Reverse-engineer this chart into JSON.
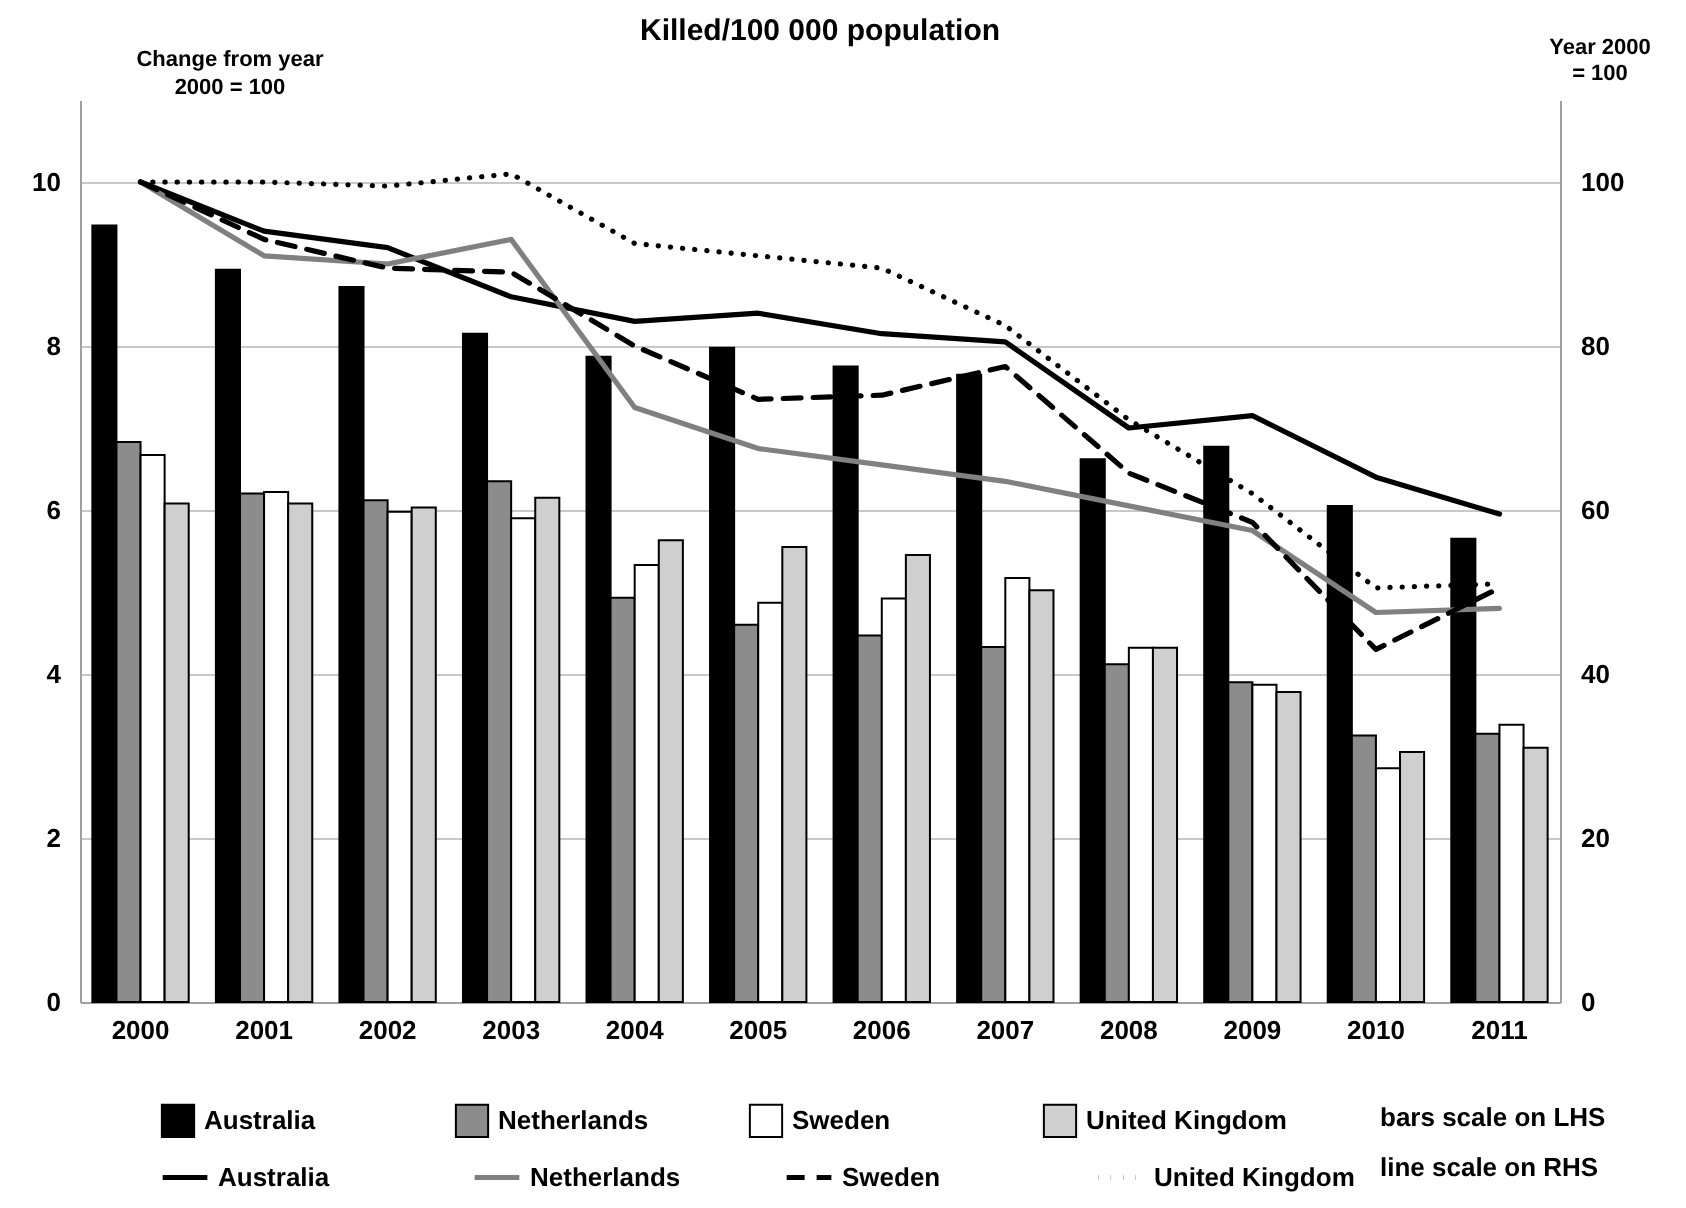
{
  "chart_data": {
    "type": "bar",
    "title": "Killed/100 000 population",
    "y2label": "Year 2000 = 100",
    "categories": [
      "2000",
      "2001",
      "2002",
      "2003",
      "2004",
      "2005",
      "2006",
      "2007",
      "2008",
      "2009",
      "2010",
      "2011"
    ],
    "series": [
      {
        "name": "Australia",
        "color": "#000000",
        "values": [
          9.47,
          8.93,
          8.72,
          8.15,
          7.87,
          7.98,
          7.75,
          7.65,
          6.62,
          6.77,
          6.05,
          5.65
        ]
      },
      {
        "name": "Netherlands",
        "color": "#8c8c8c",
        "values": [
          6.83,
          6.2,
          6.12,
          6.35,
          4.93,
          4.6,
          4.47,
          4.33,
          4.12,
          3.9,
          3.25,
          3.27
        ]
      },
      {
        "name": "Sweden",
        "color": "#ffffff",
        "values": [
          6.67,
          6.22,
          5.98,
          5.9,
          5.33,
          4.87,
          4.92,
          5.17,
          4.32,
          3.87,
          2.85,
          3.38
        ]
      },
      {
        "name": "United Kingdom",
        "color": "#cfcfcf",
        "values": [
          6.08,
          6.08,
          6.03,
          6.15,
          5.63,
          5.55,
          5.45,
          5.02,
          4.32,
          3.78,
          3.05,
          3.1
        ]
      },
      {
        "name": "Australia",
        "type": "line",
        "axis": "y2",
        "color": "#000000",
        "line_style": "solid",
        "values": [
          100,
          94,
          92,
          86,
          83,
          84,
          81.5,
          80.5,
          70,
          71.5,
          64,
          59.5
        ]
      },
      {
        "name": "Netherlands",
        "type": "line",
        "axis": "y2",
        "color": "#808080",
        "line_style": "solid",
        "values": [
          100,
          91,
          90,
          93,
          72.5,
          67.5,
          65.5,
          63.5,
          60.5,
          57.5,
          47.5,
          48
        ]
      },
      {
        "name": "Sweden",
        "type": "line",
        "axis": "y2",
        "color": "#000000",
        "line_style": "dashed",
        "values": [
          100,
          93,
          89.5,
          89,
          80,
          73.5,
          74,
          77.5,
          64.5,
          58.5,
          43,
          50.5
        ]
      },
      {
        "name": "United Kingdom",
        "type": "line",
        "axis": "y2",
        "color": "#000000",
        "line_style": "dotted",
        "values": [
          100,
          100,
          99.5,
          101,
          92.5,
          91,
          89.5,
          82.5,
          71,
          62,
          50.5,
          51
        ]
      }
    ],
    "ylim": [
      0,
      11
    ],
    "yticks": [
      0,
      2,
      4,
      6,
      8,
      10
    ],
    "y2lim": [
      0,
      110
    ],
    "y2ticks": [
      0,
      20,
      40,
      60,
      80,
      100
    ],
    "grid": "y",
    "legend": "bottom",
    "annotations": [
      "Change from year 2000 = 100",
      "bars scale on LHS",
      "line scale on RHS"
    ]
  }
}
